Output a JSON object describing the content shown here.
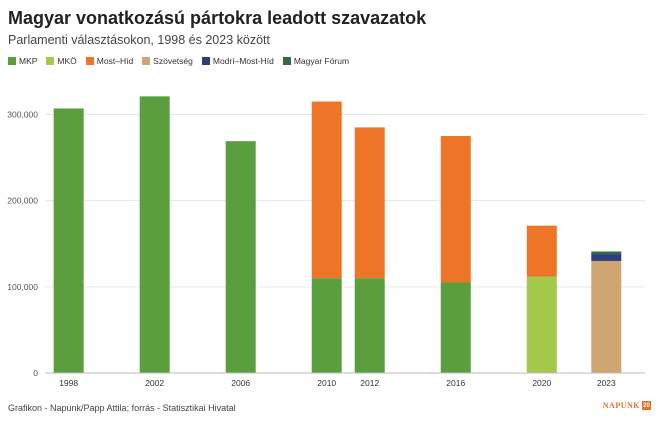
{
  "header": {
    "title": "Magyar vonatkozású pártokra leadott szavazatok",
    "subtitle": "Parlamenti választásokon, 1998 és 2023 között"
  },
  "footer": {
    "source": "Grafikon - Napunk/Papp Attila; forrás - Statisztikai Hivatal",
    "logo_text": "NAPUNK",
    "logo_box": "20"
  },
  "chart_data": {
    "type": "bar",
    "stacked": true,
    "title": "Magyar vonatkozású pártokra leadott szavazatok",
    "subtitle": "Parlamenti választásokon, 1998 és 2023 között",
    "xlabel": "",
    "ylabel": "",
    "ylim": [
      0,
      340000
    ],
    "yticks": [
      0,
      100000,
      200000,
      300000
    ],
    "ytick_labels": [
      "0",
      "100,000",
      "200,000",
      "300,000"
    ],
    "grid": true,
    "legend_position": "top-left",
    "x_axis": "time",
    "x_range": [
      1996.9,
      2024.8
    ],
    "categories": [
      "1998",
      "2002",
      "2006",
      "2010",
      "2012",
      "2016",
      "2020",
      "2023"
    ],
    "x": [
      1998,
      2002,
      2006,
      2010,
      2012,
      2016,
      2020,
      2023
    ],
    "series": [
      {
        "name": "MKP",
        "color": "#5a9e3d",
        "values": [
          307000,
          321000,
          269000,
          110000,
          110000,
          105000,
          0,
          0
        ]
      },
      {
        "name": "MKÖ",
        "color": "#a4c84a",
        "values": [
          0,
          0,
          0,
          0,
          0,
          0,
          112000,
          0
        ]
      },
      {
        "name": "Most–Híd",
        "color": "#ec7527",
        "values": [
          0,
          0,
          0,
          205000,
          175000,
          170000,
          59000,
          0
        ]
      },
      {
        "name": "Szövetség",
        "color": "#cfa572",
        "values": [
          0,
          0,
          0,
          0,
          0,
          0,
          0,
          130000
        ]
      },
      {
        "name": "Modrí–Most-Híd",
        "color": "#2c3f7a",
        "values": [
          0,
          0,
          0,
          0,
          0,
          0,
          0,
          8000
        ]
      },
      {
        "name": "Magyar Fórum",
        "color": "#2e6b46",
        "values": [
          0,
          0,
          0,
          0,
          0,
          0,
          0,
          3000
        ]
      }
    ]
  }
}
